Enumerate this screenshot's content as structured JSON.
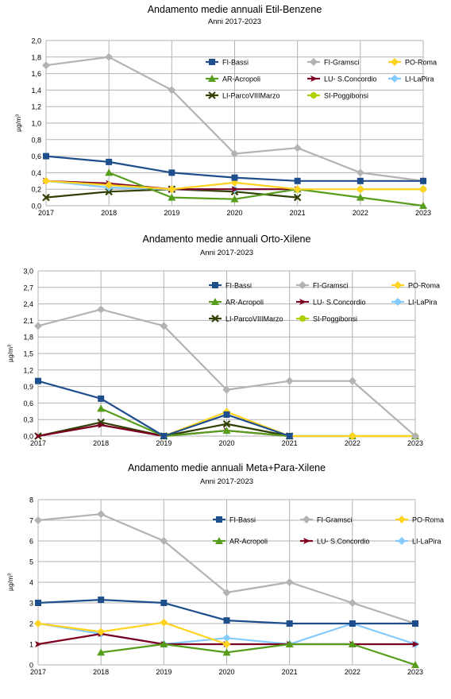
{
  "chart_data": [
    {
      "type": "line",
      "title": "Andamento medie annuali Etil-Benzene",
      "subtitle": "Anni 2017-2023",
      "xlabel": "",
      "ylabel": "µg/m³",
      "categories": [
        "2017",
        "2018",
        "2019",
        "2020",
        "2021",
        "2022",
        "2023"
      ],
      "ylim": [
        0,
        2.0
      ],
      "yticks": [
        "0,0",
        "0,2",
        "0,4",
        "0,6",
        "0,8",
        "1,0",
        "1,2",
        "1,4",
        "1,6",
        "1,8",
        "2,0"
      ],
      "grid": true,
      "legend_placement": "top-right",
      "series": [
        {
          "name": "FI-Bassi",
          "color": "#1f4e8c",
          "marker": "square",
          "values": [
            0.6,
            0.53,
            0.4,
            0.34,
            0.3,
            0.3,
            0.3
          ]
        },
        {
          "name": "FI-Gramsci",
          "color": "#b3b3b3",
          "marker": "diamond",
          "values": [
            1.7,
            1.8,
            1.4,
            0.63,
            0.7,
            0.4,
            0.3
          ]
        },
        {
          "name": "PO-Roma",
          "color": "#ffd320",
          "marker": "diamond",
          "values": [
            0.3,
            0.25,
            0.2,
            0.28,
            0.2,
            0.2,
            0.2
          ]
        },
        {
          "name": "AR-Acropoli",
          "color": "#579d1c",
          "marker": "triangle",
          "values": [
            null,
            0.4,
            0.1,
            0.08,
            0.2,
            0.1,
            0.0
          ]
        },
        {
          "name": "LU- S.Concordio",
          "color": "#7e0021",
          "marker": "arrow",
          "values": [
            0.3,
            0.27,
            0.2,
            0.2,
            0.2,
            null,
            null
          ]
        },
        {
          "name": "LI-LaPira",
          "color": "#83caff",
          "marker": "diamond",
          "values": [
            0.3,
            0.22,
            0.2,
            0.2,
            0.2,
            null,
            null
          ]
        },
        {
          "name": "LI-ParcoVIIIMarzo",
          "color": "#314004",
          "marker": "x",
          "values": [
            0.1,
            0.17,
            0.2,
            0.17,
            0.1,
            null,
            null
          ]
        },
        {
          "name": "SI-Poggibonsi",
          "color": "#aecf00",
          "marker": "circle",
          "values": [
            null,
            null,
            null,
            null,
            null,
            0.2,
            0.2
          ]
        }
      ]
    },
    {
      "type": "line",
      "title": "Andamento medie annuali Orto-Xilene",
      "subtitle": "Anni 2017-2023",
      "xlabel": "",
      "ylabel": "µg/m³",
      "categories": [
        "2017",
        "2018",
        "2019",
        "2020",
        "2021",
        "2022",
        "2023"
      ],
      "ylim": [
        0,
        3.0
      ],
      "yticks": [
        "0,0",
        "0,3",
        "0,6",
        "0,9",
        "1,2",
        "1,5",
        "1,8",
        "2,1",
        "2,4",
        "2,7",
        "3,0"
      ],
      "grid": true,
      "legend_placement": "top-right",
      "series": [
        {
          "name": "FI-Bassi",
          "color": "#1f4e8c",
          "marker": "square",
          "values": [
            1.0,
            0.68,
            0.0,
            0.39,
            0.0,
            null,
            null
          ]
        },
        {
          "name": "FI-Gramsci",
          "color": "#b3b3b3",
          "marker": "diamond",
          "values": [
            2.0,
            2.3,
            2.0,
            0.84,
            1.0,
            1.0,
            0.0
          ]
        },
        {
          "name": "PO-Roma",
          "color": "#ffd320",
          "marker": "diamond",
          "values": [
            null,
            null,
            0.0,
            0.44,
            0.0,
            0.0,
            0.0
          ]
        },
        {
          "name": "AR-Acropoli",
          "color": "#579d1c",
          "marker": "triangle",
          "values": [
            null,
            0.5,
            0.0,
            0.1,
            0.0,
            0.0,
            0.0
          ]
        },
        {
          "name": "LU- S.Concordio",
          "color": "#7e0021",
          "marker": "arrow",
          "values": [
            0.0,
            0.2,
            0.0,
            0.1,
            0.0,
            null,
            null
          ]
        },
        {
          "name": "LI-LaPira",
          "color": "#83caff",
          "marker": "diamond",
          "values": [
            null,
            null,
            null,
            null,
            0.0,
            0.0,
            null
          ]
        },
        {
          "name": "LI-ParcoVIIIMarzo",
          "color": "#314004",
          "marker": "x",
          "values": [
            0.0,
            0.25,
            0.0,
            0.22,
            0.0,
            null,
            null
          ]
        },
        {
          "name": "SI-Poggibonsi",
          "color": "#aecf00",
          "marker": "circle",
          "values": [
            null,
            null,
            null,
            null,
            null,
            0.0,
            0.0
          ]
        }
      ]
    },
    {
      "type": "line",
      "title": "Andamento medie annuali Meta+Para-Xilene",
      "subtitle": "Anni 2017-2023",
      "xlabel": "",
      "ylabel": "µg/m³",
      "categories": [
        "2017",
        "2018",
        "2019",
        "2020",
        "2021",
        "2022",
        "2023"
      ],
      "ylim": [
        0,
        8
      ],
      "yticks": [
        "0",
        "1",
        "2",
        "3",
        "4",
        "5",
        "6",
        "7",
        "8"
      ],
      "grid": true,
      "legend_placement": "top-right",
      "series": [
        {
          "name": "FI-Bassi",
          "color": "#1f4e8c",
          "marker": "square",
          "values": [
            3.0,
            3.15,
            3.0,
            2.15,
            2.0,
            2.0,
            2.0
          ]
        },
        {
          "name": "FI-Gramsci",
          "color": "#b3b3b3",
          "marker": "diamond",
          "values": [
            7.0,
            7.3,
            6.0,
            3.5,
            4.0,
            3.0,
            2.0
          ]
        },
        {
          "name": "PO-Roma",
          "color": "#ffd320",
          "marker": "diamond",
          "values": [
            2.0,
            1.6,
            2.05,
            1.0,
            null,
            null,
            null
          ]
        },
        {
          "name": "AR-Acropoli",
          "color": "#579d1c",
          "marker": "triangle",
          "values": [
            null,
            0.6,
            1.0,
            0.6,
            1.0,
            1.0,
            0.0
          ]
        },
        {
          "name": "LU- S.Concordio",
          "color": "#7e0021",
          "marker": "arrow",
          "values": [
            1.0,
            1.5,
            1.0,
            1.0,
            1.0,
            1.0,
            1.0
          ]
        },
        {
          "name": "LI-LaPira",
          "color": "#83caff",
          "marker": "diamond",
          "values": [
            2.0,
            1.5,
            1.0,
            1.3,
            1.0,
            2.0,
            1.0
          ]
        }
      ]
    }
  ]
}
